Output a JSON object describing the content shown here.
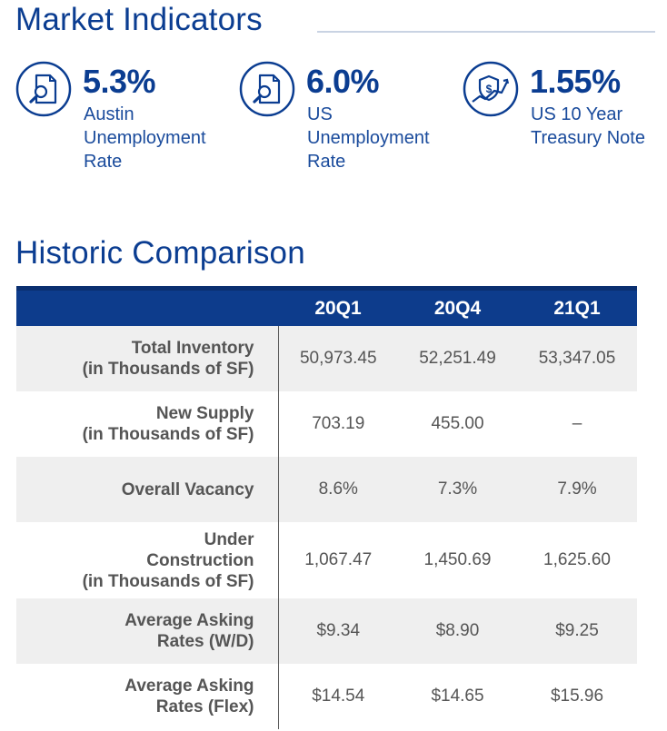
{
  "market_indicators": {
    "title": "Market Indicators",
    "items": [
      {
        "value": "5.3%",
        "label": "Austin\nUnemployment\nRate",
        "icon": "magnifier-document-icon"
      },
      {
        "value": "6.0%",
        "label": "US\nUnemployment\nRate",
        "icon": "magnifier-document-icon"
      },
      {
        "value": "1.55%",
        "label": "US 10 Year\nTreasury Note",
        "icon": "dollar-shield-trend-icon"
      }
    ]
  },
  "historic_comparison": {
    "title": "Historic Comparison",
    "columns": [
      "",
      "20Q1",
      "20Q4",
      "21Q1"
    ],
    "rows": [
      {
        "label": "Total Inventory\n(in Thousands of SF)",
        "values": [
          "50,973.45",
          "52,251.49",
          "53,347.05"
        ]
      },
      {
        "label": "New Supply\n(in Thousands of SF)",
        "values": [
          "703.19",
          "455.00",
          "–"
        ]
      },
      {
        "label": "Overall Vacancy",
        "values": [
          "8.6%",
          "7.3%",
          "7.9%"
        ]
      },
      {
        "label": "Under\nConstruction\n(in Thousands of SF)",
        "values": [
          "1,067.47",
          "1,450.69",
          "1,625.60"
        ]
      },
      {
        "label": "Average Asking\nRates (W/D)",
        "values": [
          "$9.34",
          "$8.90",
          "$9.25"
        ]
      },
      {
        "label": "Average Asking\nRates (Flex)",
        "values": [
          "$14.54",
          "$14.65",
          "$15.96"
        ]
      }
    ]
  },
  "colors": {
    "brand": "#0b3d91",
    "header_bg": "#0d3c8c",
    "row_shade": "#efefef",
    "text_gray": "#555555"
  }
}
